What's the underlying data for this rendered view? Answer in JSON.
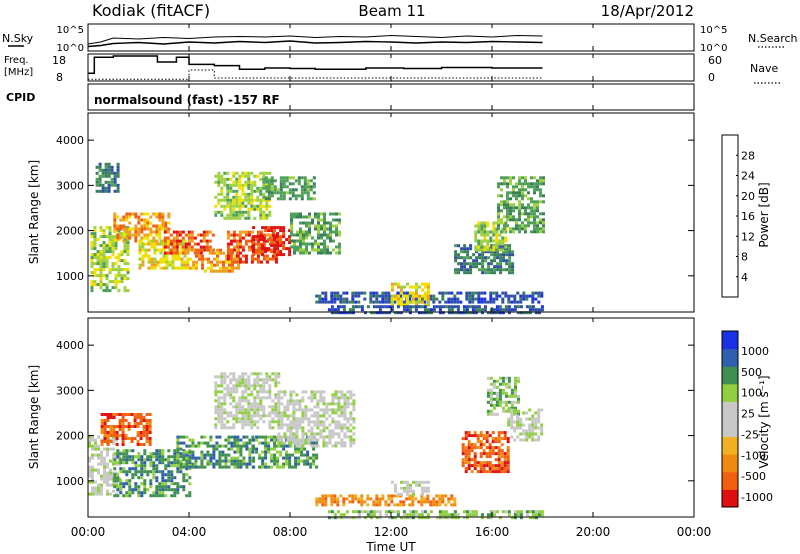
{
  "header": {
    "station": "Kodiak (fitACF)",
    "beam": "Beam 11",
    "date": "18/Apr/2012"
  },
  "panels": {
    "nsky": {
      "left_label": "N.Sky",
      "right_label": "N.Search",
      "left_ticks": [
        "10^5",
        "10^0"
      ],
      "right_ticks": [
        "10^5",
        "10^0"
      ]
    },
    "freq": {
      "left_label_1": "Freq.",
      "left_label_2": "[MHz]",
      "right_label": "Nave",
      "left_ticks": [
        "18",
        "8"
      ],
      "right_ticks": [
        "60",
        "0"
      ]
    },
    "cpid": {
      "left_label": "CPID",
      "program": "normalsound (fast) -157 RF"
    }
  },
  "colors": {
    "power": [
      "#1a31e6",
      "#2e4fa8",
      "#3b7f5a",
      "#4fa05a",
      "#9fd040",
      "#f0e000",
      "#f0a020",
      "#f06010",
      "#e01010"
    ],
    "velocity": [
      "#e01010",
      "#f06010",
      "#f08a10",
      "#f0b020",
      "#c8c8c8",
      "#c8c8c8",
      "#90d040",
      "#3f8f50",
      "#2e5fb0",
      "#1a31e6"
    ]
  },
  "chart_data": [
    {
      "type": "line",
      "name": "nsky-nsearch",
      "y_scale": "log",
      "ylim_log10": [
        0,
        5
      ],
      "x": [
        "00:00",
        "00:30",
        "01:00",
        "02:00",
        "03:00",
        "04:00",
        "05:00",
        "06:00",
        "07:00",
        "08:00",
        "09:00",
        "10:00",
        "11:00",
        "12:00",
        "13:00",
        "14:00",
        "15:00",
        "16:00",
        "17:00",
        "18:00"
      ],
      "series": [
        {
          "values_log10": [
            1.2,
            1.6,
            2.4,
            2.2,
            2.5,
            2.3,
            2.6,
            2.7,
            2.6,
            2.8,
            2.5,
            2.7,
            2.6,
            2.9,
            2.7,
            2.5,
            2.8,
            2.6,
            2.9,
            2.8
          ]
        },
        {
          "values_log10": [
            0.7,
            0.9,
            1.3,
            1.5,
            1.2,
            1.6,
            1.4,
            1.7,
            1.5,
            1.8,
            1.4,
            1.5,
            1.7,
            1.6,
            1.4,
            1.6,
            1.5,
            1.7,
            1.6,
            1.5
          ]
        }
      ]
    },
    {
      "type": "line",
      "name": "frequency-nave",
      "ylim": [
        8,
        18
      ],
      "y2lim": [
        0,
        60
      ],
      "series": [
        {
          "steps": [
            [
              "00:00",
              10.8
            ],
            [
              "00:15",
              17.5
            ],
            [
              "01:00",
              18.0
            ],
            [
              "02:45",
              15.5
            ],
            [
              "03:30",
              17.5
            ],
            [
              "04:00",
              14.5
            ],
            [
              "05:00",
              14.0
            ],
            [
              "06:00",
              12.5
            ],
            [
              "07:00",
              13.0
            ],
            [
              "08:00",
              12.8
            ],
            [
              "09:00",
              12.5
            ],
            [
              "11:00",
              13.0
            ],
            [
              "12:30",
              12.8
            ],
            [
              "14:00",
              13.2
            ],
            [
              "16:00",
              13.0
            ],
            [
              "18:00",
              13.0
            ]
          ]
        },
        {
          "steps": [
            [
              "00:00",
              2
            ],
            [
              "04:00",
              25
            ],
            [
              "05:00",
              5
            ],
            [
              "18:00",
              5
            ]
          ]
        }
      ]
    },
    {
      "type": "heatmap",
      "name": "power",
      "xlabel": "",
      "ylabel": "Slant Range [km]",
      "xlim": [
        "00:00",
        "24:00"
      ],
      "ylim": [
        200,
        4600
      ],
      "yticks": [
        1000,
        2000,
        3000,
        4000
      ],
      "colorbar_label": "Power [dB]",
      "colorbar_ticks": [
        4,
        8,
        12,
        16,
        20,
        24,
        28
      ],
      "regions": [
        {
          "t0": 0.3,
          "t1": 1.2,
          "r0": 2900,
          "r1": 3500,
          "level": 2
        },
        {
          "t0": 0.1,
          "t1": 1.6,
          "r0": 700,
          "r1": 2100,
          "level": 4
        },
        {
          "t0": 1.0,
          "t1": 3.2,
          "r0": 1800,
          "r1": 2400,
          "level": 6
        },
        {
          "t0": 2.0,
          "t1": 4.0,
          "r0": 1200,
          "r1": 1800,
          "level": 5
        },
        {
          "t0": 3.0,
          "t1": 5.0,
          "r0": 1500,
          "r1": 2000,
          "level": 7
        },
        {
          "t0": 4.0,
          "t1": 6.0,
          "r0": 1100,
          "r1": 1600,
          "level": 6
        },
        {
          "t0": 5.5,
          "t1": 7.5,
          "r0": 1300,
          "r1": 2000,
          "level": 7
        },
        {
          "t0": 6.5,
          "t1": 8.0,
          "r0": 1500,
          "r1": 2100,
          "level": 8
        },
        {
          "t0": 5.0,
          "t1": 7.2,
          "r0": 2300,
          "r1": 3300,
          "level": 4
        },
        {
          "t0": 7.0,
          "t1": 9.0,
          "r0": 2700,
          "r1": 3200,
          "level": 3
        },
        {
          "t0": 8.0,
          "t1": 10.0,
          "r0": 1500,
          "r1": 2400,
          "level": 3
        },
        {
          "t0": 9.0,
          "t1": 18.0,
          "r0": 450,
          "r1": 650,
          "level": 1
        },
        {
          "t0": 12.0,
          "t1": 13.5,
          "r0": 350,
          "r1": 850,
          "level": 5
        },
        {
          "t0": 14.5,
          "t1": 16.8,
          "r0": 1100,
          "r1": 1700,
          "level": 2
        },
        {
          "t0": 15.3,
          "t1": 16.6,
          "r0": 1600,
          "r1": 2200,
          "level": 4
        },
        {
          "t0": 16.2,
          "t1": 18.0,
          "r0": 2000,
          "r1": 3200,
          "level": 3
        },
        {
          "t0": 9.5,
          "t1": 18.0,
          "r0": 200,
          "r1": 350,
          "level": 1
        }
      ]
    },
    {
      "type": "heatmap",
      "name": "velocity",
      "xlabel": "Time UT",
      "ylabel": "Slant Range [km]",
      "xlim": [
        "00:00",
        "24:00"
      ],
      "ylim": [
        200,
        4600
      ],
      "xticks": [
        "00:00",
        "04:00",
        "08:00",
        "12:00",
        "16:00",
        "20:00",
        "00:00"
      ],
      "yticks": [
        1000,
        2000,
        3000,
        4000
      ],
      "colorbar_label": "Velocity [m s⁻¹]",
      "colorbar_ticks": [
        1000,
        500,
        100,
        25,
        -25,
        -100,
        -500,
        -1000
      ],
      "regions": [
        {
          "t0": 0.0,
          "t1": 1.2,
          "r0": 700,
          "r1": 2000,
          "level": 5
        },
        {
          "t0": 0.5,
          "t1": 2.5,
          "r0": 1800,
          "r1": 2500,
          "level": 1
        },
        {
          "t0": 1.0,
          "t1": 4.0,
          "r0": 700,
          "r1": 1700,
          "level": 7
        },
        {
          "t0": 3.5,
          "t1": 6.5,
          "r0": 1300,
          "r1": 2000,
          "level": 7
        },
        {
          "t0": 5.0,
          "t1": 7.5,
          "r0": 2200,
          "r1": 3400,
          "level": 5
        },
        {
          "t0": 6.5,
          "t1": 9.0,
          "r0": 1300,
          "r1": 2000,
          "level": 7
        },
        {
          "t0": 7.5,
          "t1": 10.5,
          "r0": 1800,
          "r1": 3000,
          "level": 5
        },
        {
          "t0": 9.0,
          "t1": 14.5,
          "r0": 450,
          "r1": 700,
          "level": 2
        },
        {
          "t0": 12.0,
          "t1": 13.5,
          "r0": 700,
          "r1": 1000,
          "level": 5
        },
        {
          "t0": 14.8,
          "t1": 16.6,
          "r0": 1200,
          "r1": 2100,
          "level": 1
        },
        {
          "t0": 15.8,
          "t1": 17.0,
          "r0": 2500,
          "r1": 3300,
          "level": 6
        },
        {
          "t0": 16.6,
          "t1": 18.0,
          "r0": 1900,
          "r1": 2600,
          "level": 5
        },
        {
          "t0": 9.5,
          "t1": 18.0,
          "r0": 200,
          "r1": 350,
          "level": 6
        }
      ]
    }
  ]
}
